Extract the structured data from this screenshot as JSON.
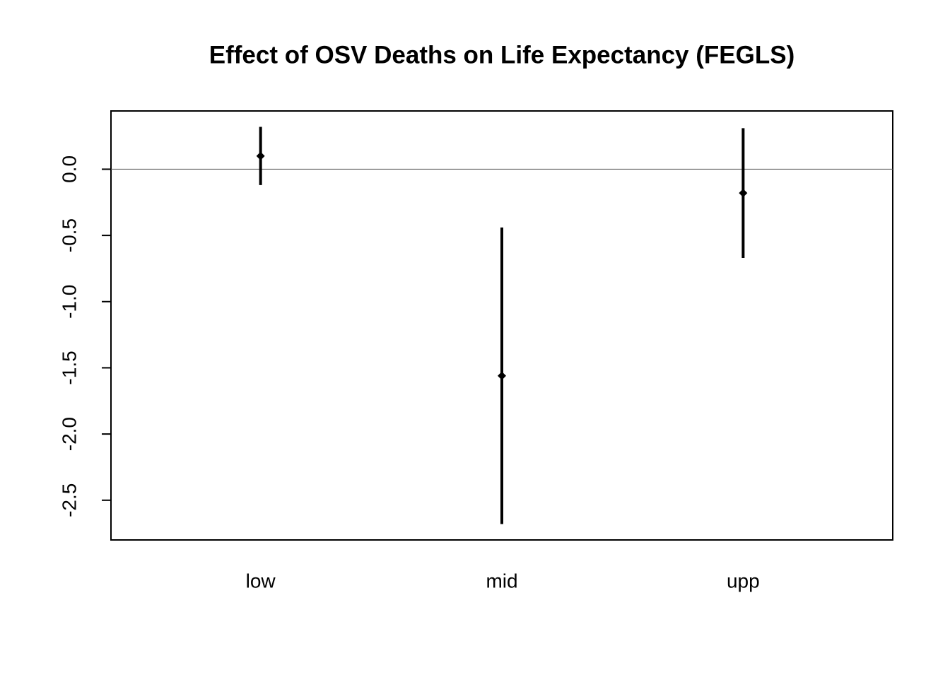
{
  "chart_data": {
    "type": "errorbar",
    "title": "Effect of OSV Deaths on Life Expectancy (FEGLS)",
    "categories": [
      "low",
      "mid",
      "upp"
    ],
    "values": [
      0.1,
      -1.56,
      -0.18
    ],
    "errors": [
      0.22,
      1.12,
      0.49
    ],
    "color": "#000000",
    "ylim": [
      -2.8,
      0.44
    ],
    "yticks": [
      {
        "value": 0,
        "label": "0.0"
      },
      -0.5,
      {
        "value": -1,
        "label": "-1.0"
      },
      -1.5,
      {
        "value": -2,
        "label": "-2.0"
      },
      -2.5
    ],
    "hline": 0
  }
}
